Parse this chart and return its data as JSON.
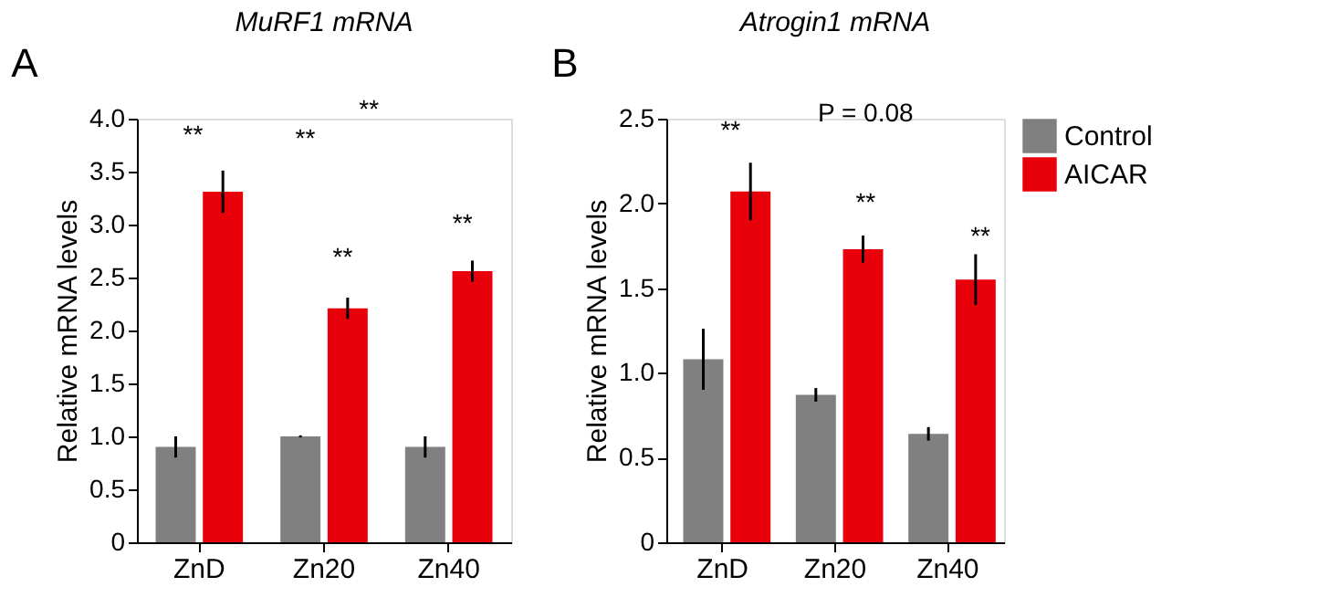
{
  "chart_data": [
    {
      "type": "bar",
      "title": "MuRF1 mRNA",
      "ylabel": "Relative mRNA levels",
      "categories": [
        "ZnD",
        "Zn20",
        "Zn40"
      ],
      "series": [
        {
          "color": "#808080",
          "values": [
            0.9,
            1.0,
            0.9
          ],
          "errors": [
            0.1,
            0.01,
            0.1
          ]
        },
        {
          "color": "#e8000b",
          "values": [
            3.31,
            2.21,
            2.56
          ],
          "errors": [
            0.2,
            0.1,
            0.1
          ]
        }
      ],
      "ylim": [
        0,
        4
      ],
      "yticks": [
        {
          "value": 0,
          "label": "0"
        },
        {
          "value": 0.5,
          "label": "0.5"
        },
        {
          "value": 1,
          "label": "1.0"
        },
        {
          "value": 1.5,
          "label": "1.5"
        },
        {
          "value": 2,
          "label": "2.0"
        },
        {
          "value": 2.5,
          "label": "2.5"
        },
        {
          "value": 3,
          "label": "3.0"
        },
        {
          "value": 3.5,
          "label": "3.5"
        },
        {
          "value": 4,
          "label": "4.0"
        }
      ],
      "annotations": [
        "A",
        "**",
        "**",
        "**",
        "**",
        "**"
      ]
    },
    {
      "type": "bar",
      "title": "Atrogin1 mRNA",
      "ylabel": "Relative mRNA levels",
      "categories": [
        "ZnD",
        "Zn20",
        "Zn40"
      ],
      "series": [
        {
          "name": "Control",
          "color": "#808080",
          "values": [
            1.08,
            0.87,
            0.64
          ],
          "errors": [
            0.18,
            0.04,
            0.04
          ]
        },
        {
          "name": "AICAR",
          "color": "#e8000b",
          "values": [
            2.07,
            1.73,
            1.55
          ],
          "errors": [
            0.17,
            0.08,
            0.15
          ]
        }
      ],
      "ylim": [
        0,
        2.5
      ],
      "yticks": [
        {
          "value": 0,
          "label": "0"
        },
        {
          "value": 0.5,
          "label": "0.5"
        },
        {
          "value": 1,
          "label": "1.0"
        },
        {
          "value": 1.5,
          "label": "1.5"
        },
        {
          "value": 2,
          "label": "2.0"
        },
        {
          "value": 2.5,
          "label": "2.5"
        }
      ],
      "legend": "right",
      "annotations": [
        "B",
        "**",
        "P = 0.08",
        "**",
        "**"
      ]
    }
  ]
}
